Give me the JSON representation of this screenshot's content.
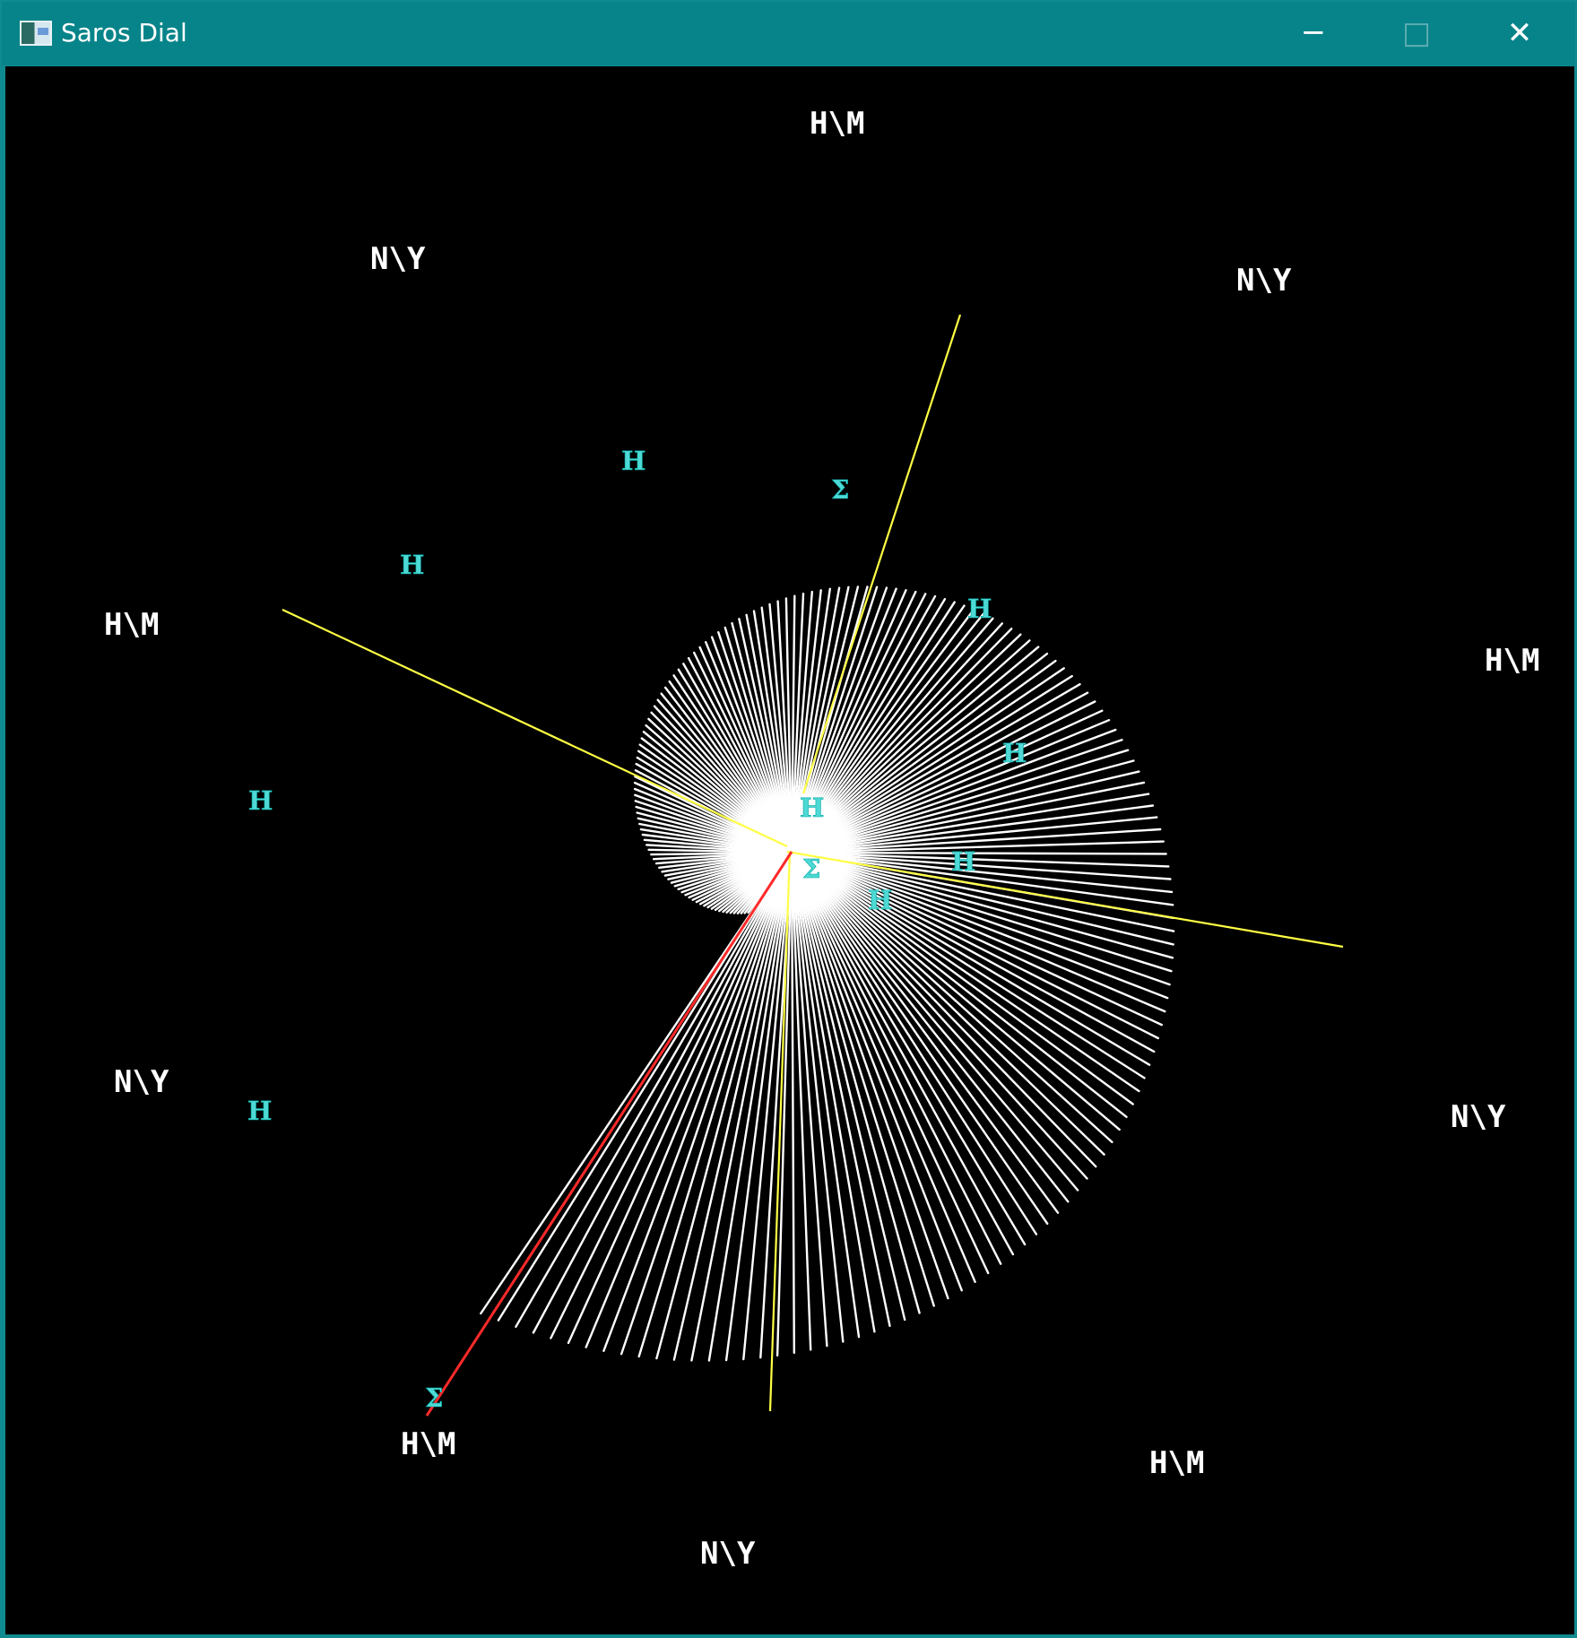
{
  "window": {
    "title": "Saros Dial",
    "controls": {
      "minimize": "─",
      "maximize": "□",
      "close": "✕"
    }
  },
  "dial_labels": [
    "H\\M",
    "N\\Y",
    "N\\Y",
    "H\\M",
    "H\\M",
    "N\\Y",
    "N\\Y",
    "H\\M",
    "H\\M",
    "N\\Y"
  ],
  "greek_letters": [
    "Η",
    "Σ",
    "Η",
    "Η",
    "Η",
    "Η",
    "Η",
    "Η",
    "Σ",
    "Η",
    "Η",
    "Σ"
  ],
  "colors": {
    "title_bar": "#07848a",
    "canvas": "#000000",
    "spiral_lines": "#ffffff",
    "yellow_lines": "#ffff44",
    "red_line": "#ff2a2a",
    "greek_text": "#4ed9d4"
  }
}
